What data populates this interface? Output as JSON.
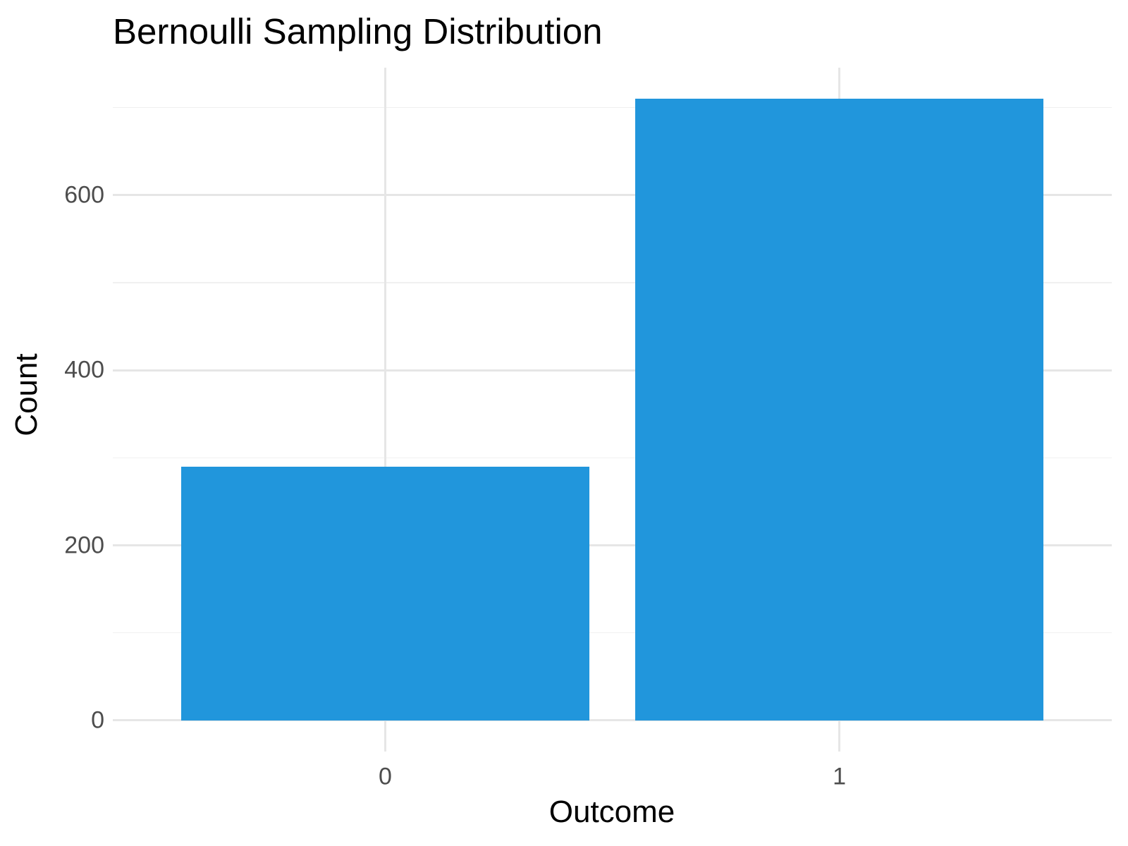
{
  "page": {
    "background": "#FFFFFF"
  },
  "chart_data": {
    "type": "bar",
    "title": "Bernoulli Sampling Distribution",
    "xlabel": "Outcome",
    "ylabel": "Count",
    "categories": [
      "0",
      "1"
    ],
    "values": [
      290,
      710
    ],
    "ylim": [
      -35.5,
      745.5
    ],
    "yticks_major": [
      0,
      200,
      400,
      600
    ],
    "yticks_minor": [
      100,
      300,
      500,
      700
    ],
    "bar_width_ratio": 0.9,
    "grid": "major-and-minor",
    "legend_position": "none",
    "colors": {
      "bar": "#2196DC",
      "grid_major": "#E6E6E6",
      "grid_minor": "#F0F0F0",
      "tick_label": "#4D4D4D",
      "text": "#000000",
      "background": "#FFFFFF"
    }
  }
}
